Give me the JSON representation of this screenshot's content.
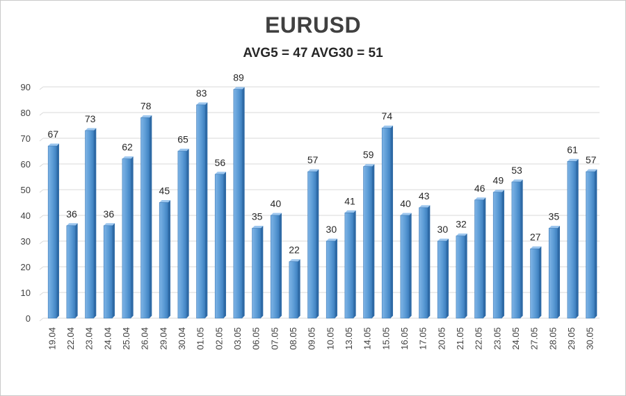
{
  "chart_data": {
    "type": "bar",
    "title": "EURUSD",
    "subtitle": "AVG5 = 47 AVG30 = 51",
    "xlabel": "",
    "ylabel": "",
    "ylim": [
      0,
      90
    ],
    "yticks": [
      0,
      10,
      20,
      30,
      40,
      50,
      60,
      70,
      80,
      90
    ],
    "grid": true,
    "bar_color": "#5b9bd5",
    "categories": [
      "19.04",
      "22.04",
      "23.04",
      "24.04",
      "25.04",
      "26.04",
      "29.04",
      "30.04",
      "01.05",
      "02.05",
      "03.05",
      "06.05",
      "07.05",
      "08.05",
      "09.05",
      "10.05",
      "13.05",
      "14.05",
      "15.05",
      "16.05",
      "17.05",
      "20.05",
      "21.05",
      "22.05",
      "23.05",
      "24.05",
      "27.05",
      "28.05",
      "29.05",
      "30.05"
    ],
    "values": [
      67,
      36,
      73,
      36,
      62,
      78,
      45,
      65,
      83,
      56,
      89,
      35,
      40,
      22,
      57,
      30,
      41,
      59,
      74,
      40,
      43,
      30,
      32,
      46,
      49,
      53,
      27,
      35,
      61,
      57
    ]
  }
}
